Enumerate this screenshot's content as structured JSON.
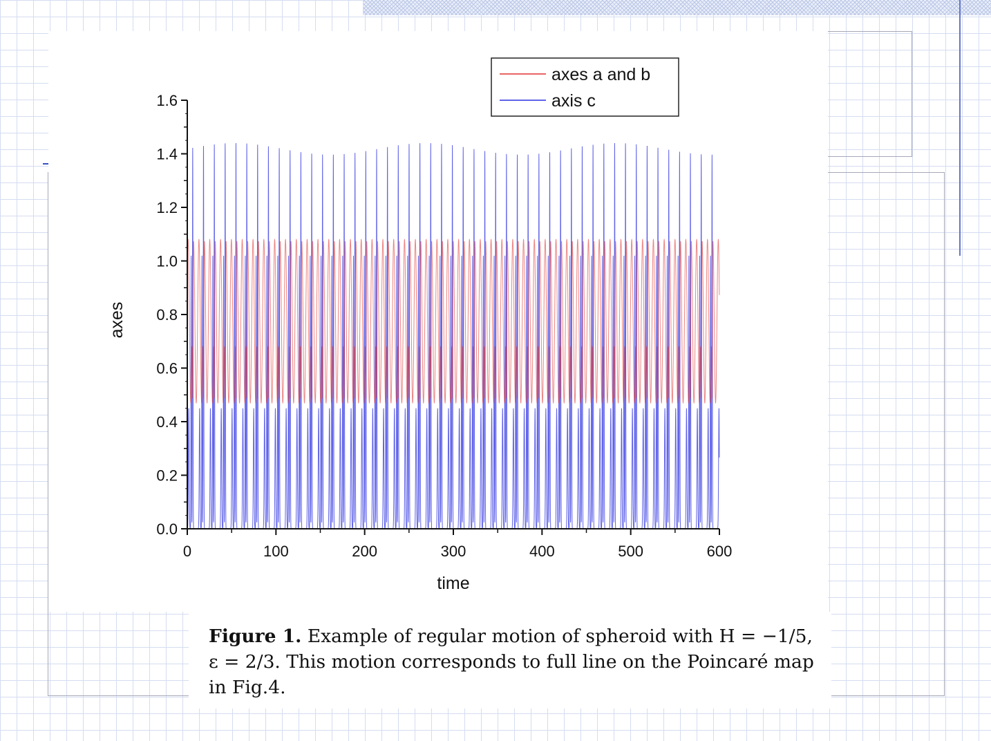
{
  "chart_data": {
    "type": "line",
    "xlabel": "time",
    "ylabel": "axes",
    "xlim": [
      0,
      600
    ],
    "ylim": [
      0,
      1.6
    ],
    "xticks": [
      "0",
      "100",
      "200",
      "300",
      "400",
      "500",
      "600"
    ],
    "yticks": [
      "0.0",
      "0.2",
      "0.4",
      "0.6",
      "0.8",
      "1.0",
      "1.2",
      "1.4",
      "1.6"
    ],
    "legend_position": "top-right",
    "series": [
      {
        "name": "axes a and b",
        "color": "#e0322e",
        "min_approx": 0.47,
        "peak_approx": 1.08,
        "period_approx": 12.2
      },
      {
        "name": "axis c",
        "color": "#2a2ee0",
        "min_approx": 0.0,
        "peak_approx": 1.44,
        "secondary_peak_approx": 1.17,
        "period_approx": 12.2
      }
    ]
  },
  "caption": {
    "label": "Figure 1.",
    "text": "Example of regular motion of spheroid with H = −1/5, ε = 2/3. This motion corresponds to full line on the Poincaré map in Fig.4."
  }
}
